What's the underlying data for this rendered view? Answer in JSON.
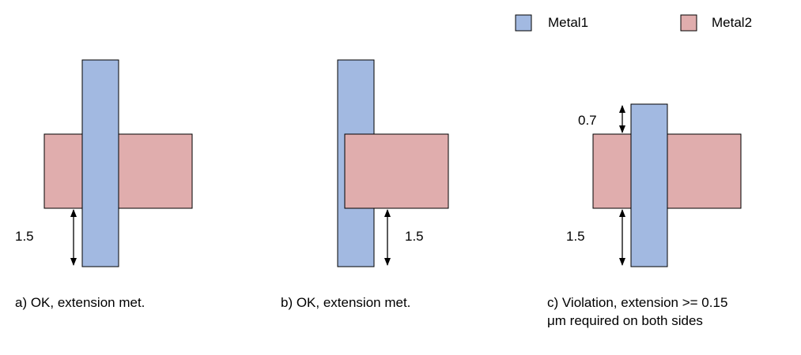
{
  "colors": {
    "metal1": "#a2b9e1",
    "metal2": "#e0adad",
    "stroke": "#000000"
  },
  "legend": {
    "items": [
      {
        "label": "Metal1",
        "color": "#a2b9e1"
      },
      {
        "label": "Metal2",
        "color": "#e0adad"
      }
    ]
  },
  "panels": [
    {
      "caption": "a) OK, extension met.",
      "dimensions": [
        "1.5"
      ]
    },
    {
      "caption": "b) OK, extension met.",
      "dimensions": [
        "1.5"
      ]
    },
    {
      "caption_line1": "c) Violation, extension >= 0.15",
      "caption_line2": "μm required on both sides",
      "dimensions": [
        "0.7",
        "1.5"
      ]
    }
  ]
}
